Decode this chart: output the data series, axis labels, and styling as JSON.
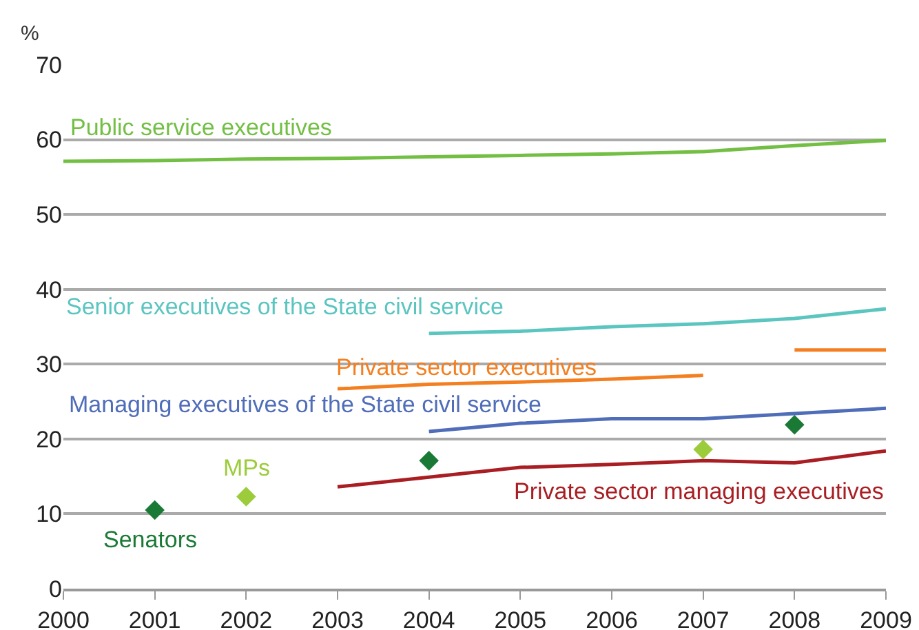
{
  "chart_data": {
    "type": "line",
    "ylabel": "%",
    "x": [
      2000,
      2001,
      2002,
      2003,
      2004,
      2005,
      2006,
      2007,
      2008,
      2009
    ],
    "series": [
      {
        "name": "Public service executives",
        "color": "#72bf44",
        "values": [
          57.1,
          57.2,
          57.4,
          57.5,
          57.7,
          57.9,
          58.1,
          58.4,
          59.2,
          59.9
        ]
      },
      {
        "name": "Senior executives of the State civil service",
        "color": "#5bc5c0",
        "values": [
          null,
          null,
          null,
          null,
          34.1,
          34.4,
          35.0,
          35.4,
          36.1,
          37.4
        ]
      },
      {
        "name": "Private sector executives",
        "color": "#f47f20",
        "x": [
          2003,
          2004,
          2005,
          2006,
          2007,
          2007.5,
          2008,
          2009
        ],
        "values": [
          26.7,
          27.3,
          27.6,
          28.0,
          28.5,
          null,
          31.9,
          31.9
        ]
      },
      {
        "name": "Managing executives of the State civil service",
        "color": "#4f6db8",
        "values": [
          null,
          null,
          null,
          null,
          21.0,
          22.1,
          22.7,
          22.7,
          23.4,
          24.1
        ]
      },
      {
        "name": "Private sector managing executives",
        "color": "#a91e23",
        "values": [
          null,
          null,
          null,
          13.6,
          14.9,
          16.2,
          16.6,
          17.1,
          16.8,
          18.4
        ]
      },
      {
        "name": "Senators",
        "type": "scatter",
        "marker": "diamond",
        "color": "#1a7a35",
        "x": [
          2001,
          2004,
          2008
        ],
        "values": [
          10.5,
          17.1,
          21.9
        ]
      },
      {
        "name": "MPs",
        "type": "scatter",
        "marker": "diamond",
        "color": "#9ccc3c",
        "x": [
          2002,
          2007
        ],
        "values": [
          12.3,
          18.6
        ]
      }
    ],
    "xlim": [
      2000,
      2009
    ],
    "xticks": [
      2000,
      2001,
      2002,
      2003,
      2004,
      2005,
      2006,
      2007,
      2008,
      2009
    ],
    "ylim": [
      0,
      70
    ],
    "yticks": [
      0,
      10,
      20,
      30,
      40,
      50,
      60,
      70
    ],
    "grid": "y",
    "legend": false,
    "marker": "none",
    "line_style": "solid"
  }
}
